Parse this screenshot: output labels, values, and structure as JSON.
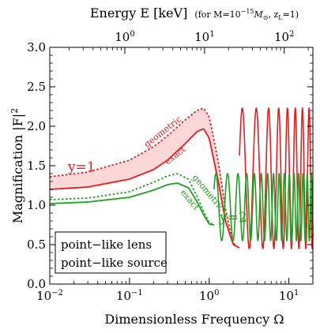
{
  "chart_data": {
    "type": "line",
    "top_axis": {
      "title_main": "Energy E [keV]",
      "title_note_prefix": "(for M=10",
      "title_note_exp": "−15",
      "title_note_mid": "M",
      "title_note_sub": "⊙",
      "title_note_sep": ", z",
      "title_note_zsub": "L",
      "title_note_suffix": "=1)",
      "ticks": [
        {
          "base": "10",
          "exp": "0",
          "freq": 0.0874
        },
        {
          "base": "10",
          "exp": "1",
          "freq": 0.874
        },
        {
          "base": "10",
          "exp": "2",
          "freq": 8.74
        }
      ]
    },
    "xlabel": "Dimensionless Frequency Ω",
    "ylabel_main": "Magnification |F|",
    "ylabel_sup": "2",
    "xscale": "log",
    "xlim": [
      0.01,
      20
    ],
    "ylim": [
      0.0,
      3.0
    ],
    "x_ticks": [
      {
        "base": "10",
        "exp": "−2",
        "value": 0.01
      },
      {
        "base": "10",
        "exp": "−1",
        "value": 0.1
      },
      {
        "base": "10",
        "exp": "0",
        "value": 1
      },
      {
        "base": "10",
        "exp": "1",
        "value": 10
      }
    ],
    "y_ticks": [
      "0.0",
      "0.5",
      "1.0",
      "1.5",
      "2.0",
      "2.5",
      "3.0"
    ],
    "series": [
      {
        "label": "exact",
        "group": "y=1",
        "style": "solid",
        "color": "#e02020",
        "points": [
          [
            0.01,
            1.2
          ],
          [
            0.03,
            1.23
          ],
          [
            0.1,
            1.33
          ],
          [
            0.2,
            1.45
          ],
          [
            0.3,
            1.57
          ],
          [
            0.5,
            1.78
          ],
          [
            0.7,
            1.93
          ],
          [
            0.85,
            1.97
          ],
          [
            1.0,
            1.85
          ],
          [
            1.3,
            1.3
          ],
          [
            1.6,
            0.8
          ],
          [
            2.0,
            0.5
          ],
          [
            2.4,
            0.46
          ]
        ]
      },
      {
        "label": "geometric",
        "group": "y=1",
        "style": "dashed",
        "color": "#e02020",
        "points": [
          [
            0.01,
            1.36
          ],
          [
            0.03,
            1.42
          ],
          [
            0.1,
            1.57
          ],
          [
            0.2,
            1.74
          ],
          [
            0.3,
            1.88
          ],
          [
            0.5,
            2.08
          ],
          [
            0.7,
            2.2
          ],
          [
            0.85,
            2.23
          ],
          [
            1.0,
            2.12
          ],
          [
            1.3,
            1.55
          ],
          [
            1.6,
            0.95
          ],
          [
            2.0,
            0.52
          ],
          [
            2.4,
            0.45
          ]
        ]
      },
      {
        "label": "exact",
        "group": "y=2",
        "style": "solid",
        "color": "#20a020",
        "points": [
          [
            0.01,
            1.02
          ],
          [
            0.03,
            1.04
          ],
          [
            0.1,
            1.1
          ],
          [
            0.2,
            1.19
          ],
          [
            0.3,
            1.26
          ],
          [
            0.4,
            1.28
          ],
          [
            0.55,
            1.22
          ],
          [
            0.7,
            1.05
          ],
          [
            0.85,
            0.88
          ],
          [
            1.0,
            0.76
          ],
          [
            1.15,
            0.75
          ]
        ]
      },
      {
        "label": "geometric",
        "group": "y=2",
        "style": "dashed",
        "color": "#20a020",
        "points": [
          [
            0.01,
            1.07
          ],
          [
            0.03,
            1.09
          ],
          [
            0.1,
            1.17
          ],
          [
            0.2,
            1.29
          ],
          [
            0.3,
            1.37
          ],
          [
            0.4,
            1.4
          ],
          [
            0.55,
            1.33
          ],
          [
            0.7,
            1.12
          ],
          [
            0.85,
            0.92
          ],
          [
            1.0,
            0.78
          ],
          [
            1.15,
            0.75
          ]
        ]
      }
    ],
    "oscillation": {
      "red": {
        "color": "#e02020",
        "max": 2.23,
        "min": 0.45,
        "start_freq": 2.4,
        "first_peak": 3.9,
        "period_factor": 1.5
      },
      "green": {
        "color": "#20a020",
        "max": 1.4,
        "min": 0.55,
        "start_freq": 1.15,
        "first_peak": 1.7,
        "period_factor": 1.4
      }
    },
    "band_color": "#fbd7d7",
    "annotations": {
      "y1_label": "y=1",
      "y2_label": "y=2",
      "geometric_red": "geometric",
      "exact_red": "exact",
      "geometric_green": "geometric",
      "exact_green": "exact"
    },
    "legend": {
      "line1": "point−like lens",
      "line2": "point−like source",
      "placement": "bottom-left"
    },
    "grid": false
  }
}
